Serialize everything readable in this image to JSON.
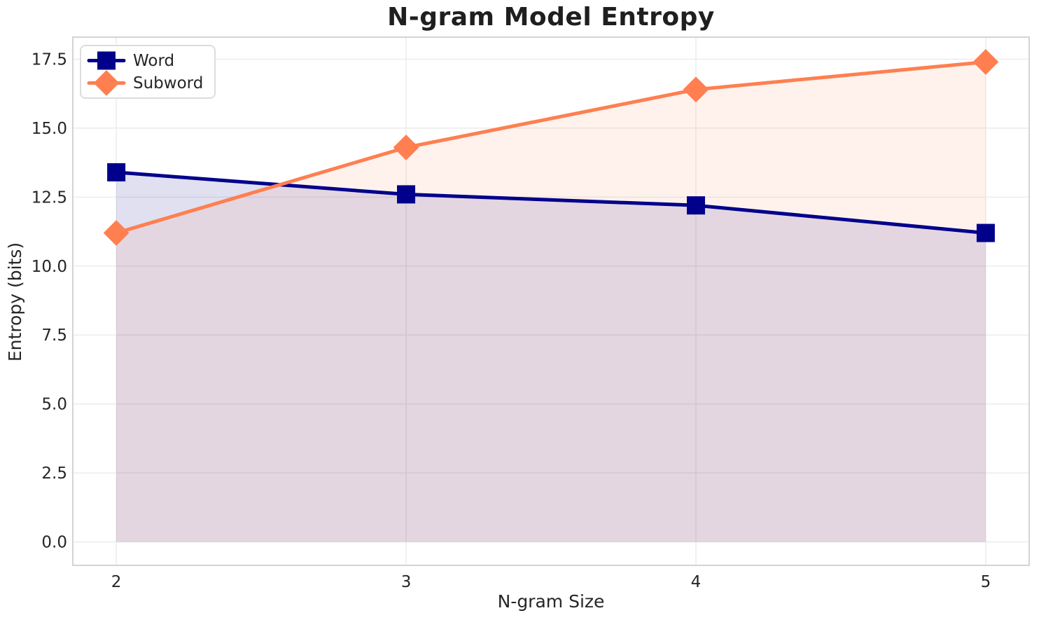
{
  "chart_data": {
    "type": "line",
    "title": "N-gram Model Entropy",
    "xlabel": "N-gram Size",
    "ylabel": "Entropy (bits)",
    "x": [
      2,
      3,
      4,
      5
    ],
    "series": [
      {
        "name": "Word",
        "values": [
          13.4,
          12.6,
          12.2,
          11.2
        ],
        "color": "#00008b",
        "fill": "rgba(0,0,139,0.12)",
        "marker": "square"
      },
      {
        "name": "Subword",
        "values": [
          11.2,
          14.3,
          16.4,
          17.4
        ],
        "color": "#ff7f50",
        "fill": "rgba(255,127,80,0.10)",
        "marker": "diamond"
      }
    ],
    "fill_baseline": 0,
    "xlim": [
      1.85,
      5.15
    ],
    "ylim": [
      -0.85,
      18.3
    ],
    "xticks": {
      "values": [
        2,
        3,
        4,
        5
      ],
      "labels": [
        "2",
        "3",
        "4",
        "5"
      ]
    },
    "yticks": {
      "values": [
        0,
        2.5,
        5,
        7.5,
        10,
        12.5,
        15,
        17.5
      ],
      "labels": [
        "0.0",
        "2.5",
        "5.0",
        "7.5",
        "10.0",
        "12.5",
        "15.0",
        "17.5"
      ]
    },
    "grid": true,
    "legend_position": "upper-left",
    "colors": {
      "grid": "#ececec",
      "spine": "#d0d0d0",
      "tick_label": "#262626",
      "title": "#1f1f1f",
      "axis_label": "#262626",
      "legend_border": "#dcdcdc",
      "background": "#ffffff"
    }
  }
}
